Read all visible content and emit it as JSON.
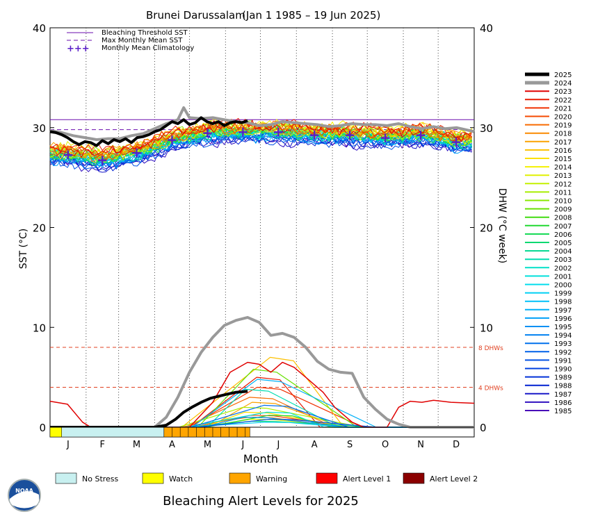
{
  "chart_data": {
    "type": "line",
    "title": "Brunei Darussalam",
    "date_range": "(Jan 1 1985 – 19 Jun 2025)",
    "xlabel": "Month",
    "ylabel_left": "SST (°C)",
    "ylabel_right": "DHW (°C week)",
    "ylim": [
      0,
      40
    ],
    "yticks_left": [
      "0",
      "10",
      "20",
      "30",
      "40"
    ],
    "yticks_right": [
      "0",
      "10",
      "20",
      "30",
      "40"
    ],
    "months": [
      "J",
      "F",
      "M",
      "A",
      "M",
      "J",
      "J",
      "A",
      "S",
      "O",
      "N",
      "D"
    ],
    "bleaching_threshold_sst": 30.8,
    "max_monthly_mean_sst": 29.8,
    "dhw_thresholds": [
      {
        "value": 4,
        "label": "4 DHWs"
      },
      {
        "value": 8,
        "label": "8 DHWs"
      }
    ],
    "legend_top": {
      "threshold": "Bleaching Threshold SST",
      "mmm": "Max Monthly Mean SST",
      "climatology": "Monthly Mean Climatology"
    },
    "climatology": [
      27.3,
      26.8,
      27.5,
      28.8,
      29.5,
      29.6,
      29.6,
      29.3,
      29.3,
      29.0,
      29.3,
      28.6
    ],
    "years": [
      "2025",
      "2024",
      "2023",
      "2022",
      "2021",
      "2020",
      "2019",
      "2018",
      "2017",
      "2016",
      "2015",
      "2014",
      "2013",
      "2012",
      "2011",
      "2010",
      "2009",
      "2008",
      "2007",
      "2006",
      "2005",
      "2004",
      "2003",
      "2002",
      "2001",
      "2000",
      "1999",
      "1998",
      "1997",
      "1996",
      "1995",
      "1994",
      "1993",
      "1992",
      "1991",
      "1990",
      "1989",
      "1988",
      "1987",
      "1986",
      "1985"
    ],
    "year_colors": [
      "#000000",
      "#999999",
      "#e00000",
      "#e81a00",
      "#f03000",
      "#f54a00",
      "#f86a00",
      "#fa8a00",
      "#fba200",
      "#fcc000",
      "#fce000",
      "#f4f000",
      "#e0f000",
      "#c4f000",
      "#a8ee00",
      "#88e800",
      "#66e000",
      "#40dc10",
      "#20d830",
      "#10d850",
      "#00d870",
      "#00d890",
      "#00dcb0",
      "#00e0c8",
      "#00e0dc",
      "#00dcec",
      "#00d0f4",
      "#00c0f8",
      "#00b0f8",
      "#00a0f8",
      "#0090f4",
      "#0080f0",
      "#0070ec",
      "#0060e8",
      "#0050e4",
      "#0040e0",
      "#0030d8",
      "#0020d0",
      "#1818c8",
      "#3010c0",
      "#4808b8"
    ],
    "sst_2025": [
      [
        0,
        29.6
      ],
      [
        5,
        29.5
      ],
      [
        10,
        29.3
      ],
      [
        15,
        29.0
      ],
      [
        20,
        28.6
      ],
      [
        25,
        28.3
      ],
      [
        30,
        28.6
      ],
      [
        35,
        28.5
      ],
      [
        40,
        28.2
      ],
      [
        45,
        28.7
      ],
      [
        50,
        28.4
      ],
      [
        55,
        28.8
      ],
      [
        60,
        28.6
      ],
      [
        65,
        28.9
      ],
      [
        70,
        28.5
      ],
      [
        75,
        29.0
      ],
      [
        80,
        29.1
      ],
      [
        85,
        29.3
      ],
      [
        90,
        29.6
      ],
      [
        95,
        29.8
      ],
      [
        100,
        30.2
      ],
      [
        105,
        30.6
      ],
      [
        110,
        30.4
      ],
      [
        115,
        30.8
      ],
      [
        120,
        30.3
      ],
      [
        125,
        30.5
      ],
      [
        130,
        31.0
      ],
      [
        135,
        30.6
      ],
      [
        140,
        30.4
      ],
      [
        145,
        30.6
      ],
      [
        150,
        30.2
      ],
      [
        155,
        30.5
      ],
      [
        160,
        30.6
      ],
      [
        165,
        30.5
      ],
      [
        170,
        30.7
      ]
    ],
    "sst_2024": [
      [
        0,
        29.7
      ],
      [
        10,
        29.5
      ],
      [
        20,
        29.2
      ],
      [
        30,
        29.0
      ],
      [
        40,
        28.8
      ],
      [
        50,
        28.9
      ],
      [
        60,
        28.9
      ],
      [
        70,
        29.2
      ],
      [
        80,
        29.4
      ],
      [
        90,
        29.9
      ],
      [
        100,
        30.4
      ],
      [
        110,
        30.8
      ],
      [
        115,
        32.0
      ],
      [
        120,
        31.0
      ],
      [
        130,
        30.9
      ],
      [
        140,
        31.0
      ],
      [
        150,
        30.8
      ],
      [
        160,
        30.6
      ],
      [
        170,
        30.5
      ],
      [
        180,
        30.2
      ],
      [
        190,
        30.3
      ],
      [
        200,
        30.6
      ],
      [
        210,
        30.5
      ],
      [
        220,
        30.4
      ],
      [
        230,
        30.3
      ],
      [
        240,
        30.1
      ],
      [
        250,
        30.2
      ],
      [
        260,
        30.4
      ],
      [
        270,
        30.3
      ],
      [
        280,
        30.3
      ],
      [
        290,
        30.2
      ],
      [
        300,
        30.4
      ],
      [
        310,
        30.1
      ],
      [
        320,
        29.9
      ],
      [
        330,
        30.1
      ],
      [
        340,
        29.9
      ],
      [
        350,
        30.0
      ],
      [
        365,
        29.6
      ]
    ],
    "dhw_2024": [
      [
        0,
        0
      ],
      [
        90,
        0
      ],
      [
        100,
        1
      ],
      [
        110,
        3
      ],
      [
        120,
        5.5
      ],
      [
        130,
        7.5
      ],
      [
        140,
        9.0
      ],
      [
        150,
        10.2
      ],
      [
        160,
        10.7
      ],
      [
        170,
        11.0
      ],
      [
        180,
        10.5
      ],
      [
        190,
        9.2
      ],
      [
        200,
        9.4
      ],
      [
        210,
        9.0
      ],
      [
        220,
        8.0
      ],
      [
        230,
        6.6
      ],
      [
        240,
        5.8
      ],
      [
        250,
        5.5
      ],
      [
        260,
        5.4
      ],
      [
        270,
        3.0
      ],
      [
        280,
        1.8
      ],
      [
        290,
        0.8
      ],
      [
        300,
        0.3
      ],
      [
        310,
        0.0
      ],
      [
        365,
        0.0
      ]
    ],
    "dhw_2025": [
      [
        0,
        0
      ],
      [
        90,
        0
      ],
      [
        100,
        0.2
      ],
      [
        108,
        0.8
      ],
      [
        115,
        1.5
      ],
      [
        122,
        2.0
      ],
      [
        130,
        2.5
      ],
      [
        138,
        2.9
      ],
      [
        145,
        3.1
      ],
      [
        152,
        3.3
      ],
      [
        160,
        3.5
      ],
      [
        170,
        3.6
      ]
    ],
    "dhw_2023": [
      [
        0,
        2.6
      ],
      [
        15,
        2.3
      ],
      [
        28,
        0.5
      ],
      [
        35,
        0
      ],
      [
        120,
        0
      ],
      [
        140,
        2.5
      ],
      [
        155,
        5.5
      ],
      [
        170,
        6.5
      ],
      [
        180,
        6.3
      ],
      [
        190,
        5.5
      ],
      [
        200,
        6.5
      ],
      [
        210,
        6.0
      ],
      [
        220,
        5.0
      ],
      [
        235,
        3.5
      ],
      [
        245,
        2.0
      ],
      [
        260,
        0.5
      ],
      [
        270,
        0.0
      ],
      [
        290,
        0.0
      ],
      [
        300,
        2.0
      ],
      [
        310,
        2.6
      ],
      [
        320,
        2.5
      ],
      [
        330,
        2.7
      ],
      [
        345,
        2.5
      ],
      [
        365,
        2.4
      ]
    ],
    "alert_legend": {
      "no_stress": "No Stress",
      "watch": "Watch",
      "warning": "Warning",
      "alert1": "Alert Level 1",
      "alert2": "Alert Level 2"
    },
    "alert_colors": {
      "no_stress": "#c8f0f0",
      "watch": "#ffff00",
      "warning": "#ffa500",
      "alert1": "#ff0000",
      "alert2": "#8b0000"
    },
    "alert_segments": [
      {
        "start": 0,
        "end": 10,
        "level": "watch"
      },
      {
        "start": 10,
        "end": 98,
        "level": "no_stress"
      },
      {
        "start": 98,
        "end": 172,
        "level": "warning"
      }
    ],
    "footer": "Bleaching Alert Levels for 2025",
    "logo_text": "NOAA"
  }
}
